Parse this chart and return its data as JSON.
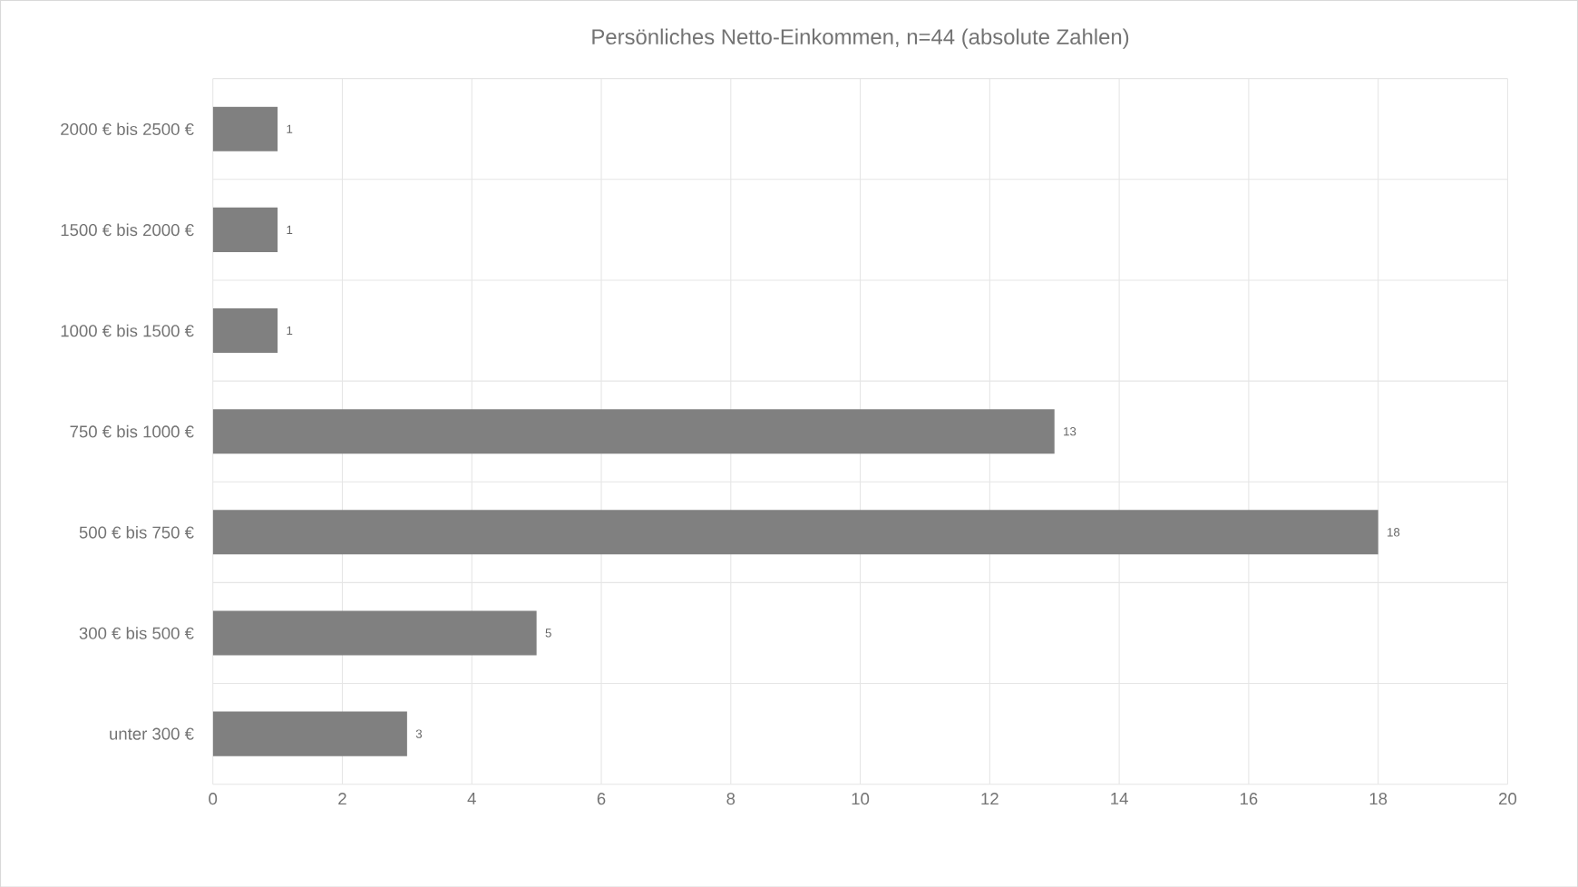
{
  "chart_data": {
    "type": "bar",
    "orientation": "horizontal",
    "title": "Persönliches Netto-Einkommen, n=44 (absolute Zahlen)",
    "categories": [
      "2000 € bis 2500 €",
      "1500 € bis 2000 €",
      "1000 € bis 1500 €",
      "750 € bis 1000 €",
      "500 € bis 750 €",
      "300 € bis 500 €",
      "unter 300 €"
    ],
    "values": [
      1,
      1,
      1,
      13,
      18,
      5,
      3
    ],
    "color": "#808080",
    "xlim": [
      0,
      20
    ],
    "xticks": [
      0,
      2,
      4,
      6,
      8,
      10,
      12,
      14,
      16,
      18,
      20
    ],
    "grid": true,
    "data_labels": true
  }
}
